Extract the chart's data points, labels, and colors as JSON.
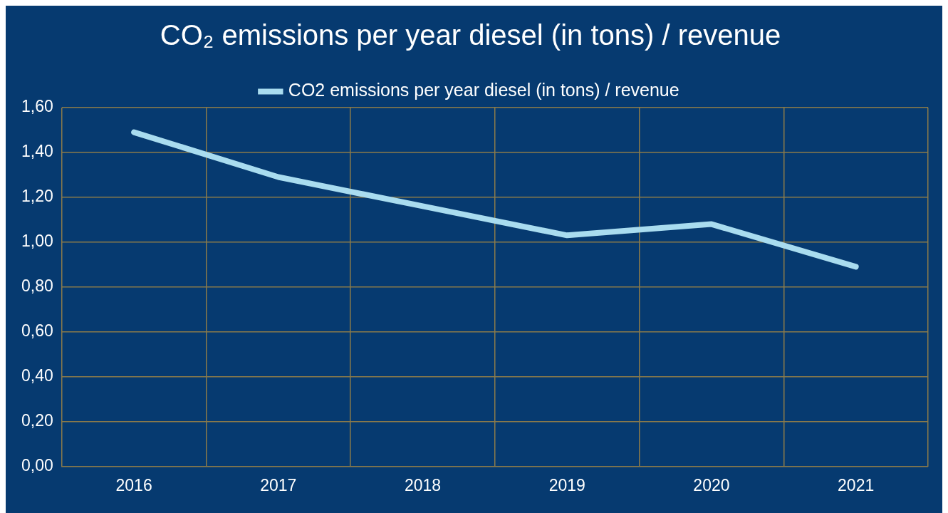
{
  "chart_data": {
    "type": "line",
    "title": "CO₂ emissions per year diesel (in tons) / revenue",
    "categories": [
      "2016",
      "2017",
      "2018",
      "2019",
      "2020",
      "2021"
    ],
    "series": [
      {
        "name": "CO2 emissions per year diesel (in tons) / revenue",
        "color": "#a9dcef",
        "values": [
          1.49,
          1.29,
          1.16,
          1.03,
          1.08,
          0.89
        ]
      }
    ],
    "ylim": [
      0,
      1.6
    ],
    "yticks": [
      {
        "value": 0,
        "label": "0,00"
      },
      {
        "value": 0.2,
        "label": "0,20"
      },
      {
        "value": 0.4,
        "label": "0,40"
      },
      {
        "value": 0.6,
        "label": "0,60"
      },
      {
        "value": 0.8,
        "label": "0,80"
      },
      {
        "value": 1.0,
        "label": "1,00"
      },
      {
        "value": 1.2,
        "label": "1,20"
      },
      {
        "value": 1.4,
        "label": "1,40"
      },
      {
        "value": 1.6,
        "label": "1,60"
      }
    ],
    "grid": true,
    "legend": "top",
    "marker": "none",
    "line_style": "solid"
  }
}
